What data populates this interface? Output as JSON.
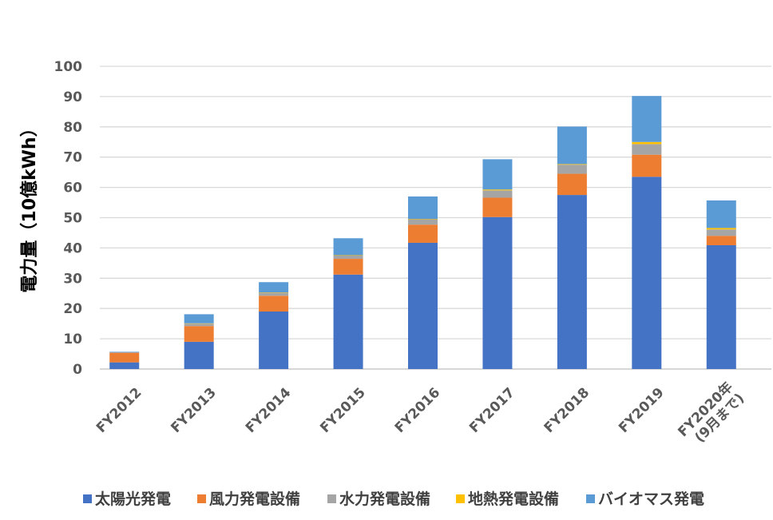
{
  "chart_data": {
    "type": "bar",
    "stacked": true,
    "categories": [
      "FY2012",
      "FY2013",
      "FY2014",
      "FY2015",
      "FY2016",
      "FY2017",
      "FY2018",
      "FY2019",
      "FY2020年\n(9月まで)"
    ],
    "series": [
      {
        "name": "太陽光発電",
        "color": "#4472C4",
        "values": [
          2.2,
          9.0,
          19.0,
          31.2,
          41.7,
          50.2,
          57.5,
          63.5,
          40.9
        ]
      },
      {
        "name": "風力発電設備",
        "color": "#ED7D31",
        "values": [
          3.2,
          5.2,
          5.2,
          5.2,
          6.0,
          6.4,
          7.0,
          7.3,
          3.1
        ]
      },
      {
        "name": "水力発電設備",
        "color": "#A5A5A5",
        "values": [
          0.1,
          0.8,
          1.0,
          1.1,
          1.8,
          2.4,
          3.0,
          3.5,
          2.1
        ]
      },
      {
        "name": "地熱発電設備",
        "color": "#FFC000",
        "values": [
          0.0,
          0.1,
          0.1,
          0.1,
          0.1,
          0.3,
          0.2,
          0.7,
          0.5
        ]
      },
      {
        "name": "バイオマス発電",
        "color": "#5B9BD5",
        "values": [
          0.2,
          3.0,
          3.4,
          5.6,
          7.4,
          10.0,
          12.4,
          15.2,
          9.1
        ]
      }
    ],
    "ylabel": "電力量（10億kWh）",
    "ylim": [
      0,
      100
    ],
    "yticks": [
      0,
      10,
      20,
      30,
      40,
      50,
      60,
      70,
      80,
      90,
      100
    ],
    "grid": true,
    "legend": "bottom"
  }
}
